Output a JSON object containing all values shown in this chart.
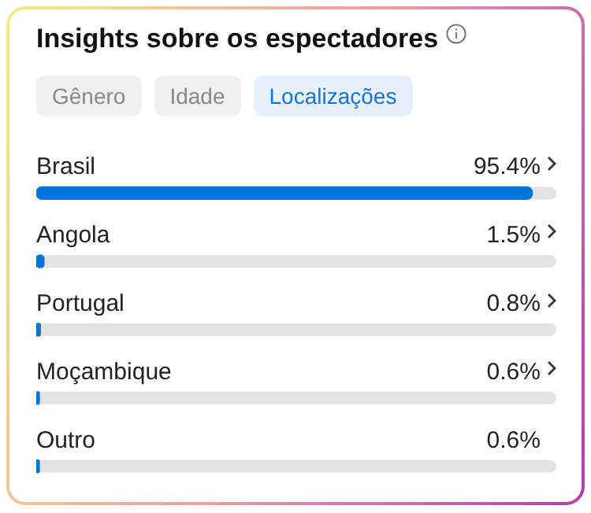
{
  "chart_data": {
    "type": "bar",
    "orientation": "horizontal",
    "title": "Insights sobre os espectadores",
    "annotations": [
      "Gênero",
      "Idade",
      "Localizações"
    ],
    "categories": [
      "Brasil",
      "Angola",
      "Portugal",
      "Moçambique",
      "Outro"
    ],
    "values": [
      95.4,
      1.5,
      0.8,
      0.6,
      0.6
    ],
    "value_labels": [
      "95.4%",
      "1.5%",
      "0.8%",
      "0.6%",
      "0.6%"
    ],
    "color": "#0474d9",
    "xlim": [
      0,
      100
    ],
    "tick_labels": false,
    "legend": false
  }
}
